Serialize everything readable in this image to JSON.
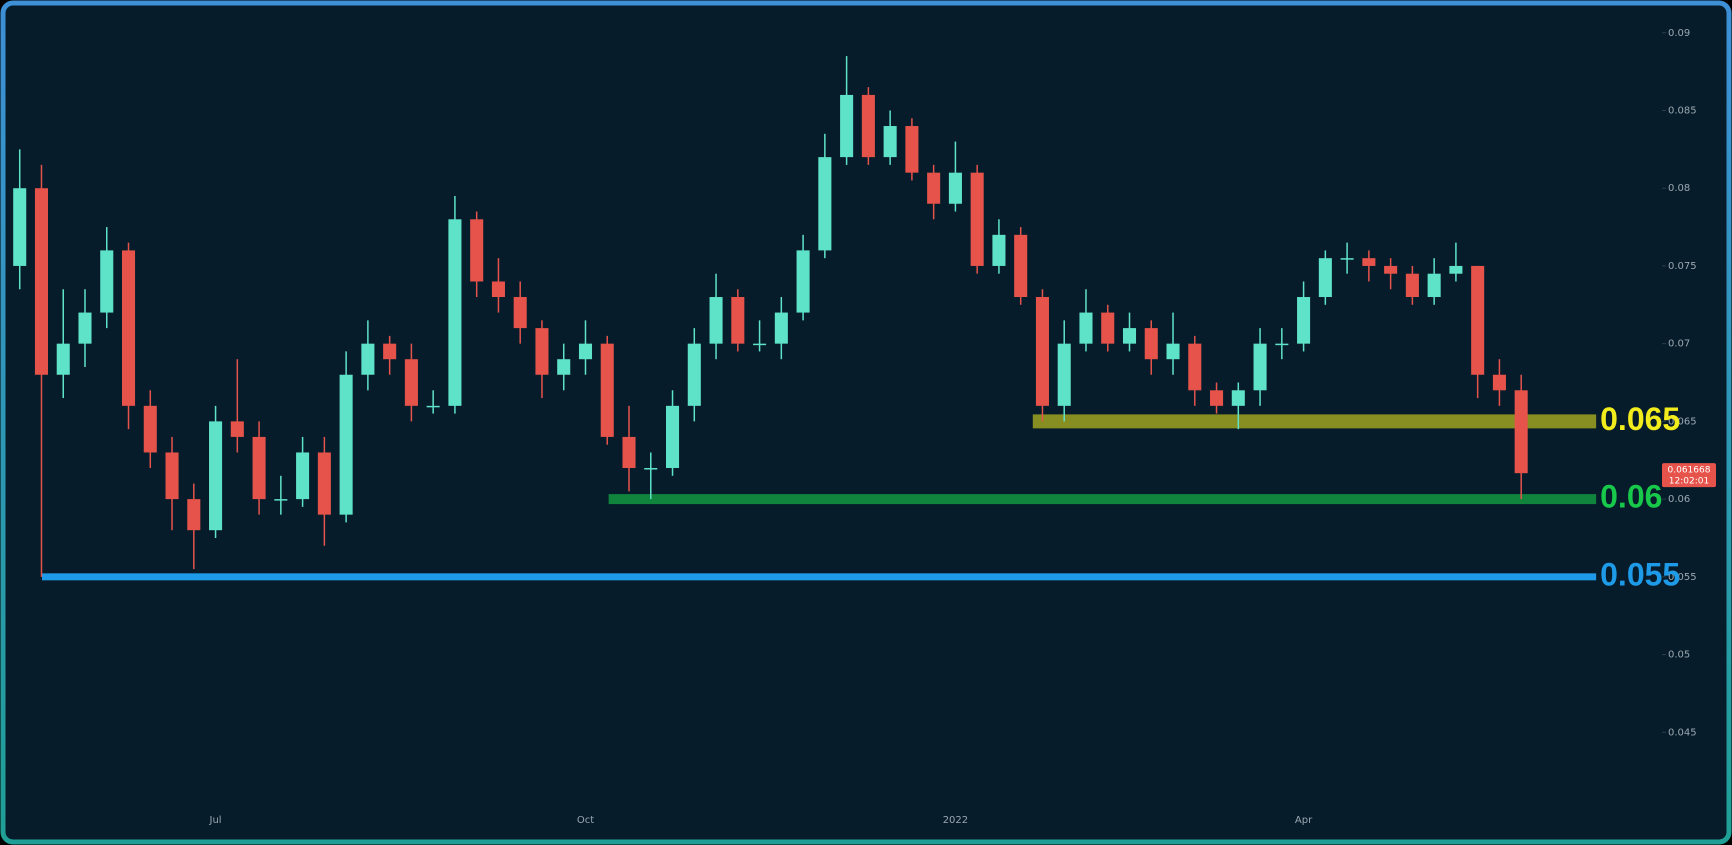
{
  "chart_data": {
    "type": "candlestick",
    "categories": [
      null,
      null,
      null,
      null,
      null,
      null,
      null,
      null,
      null,
      "Jul",
      null,
      null,
      null,
      null,
      null,
      null,
      null,
      null,
      null,
      null,
      null,
      null,
      null,
      null,
      null,
      null,
      "Oct",
      null,
      null,
      null,
      null,
      null,
      null,
      null,
      null,
      null,
      null,
      null,
      null,
      null,
      null,
      null,
      null,
      "2022",
      null,
      null,
      null,
      null,
      null,
      null,
      null,
      null,
      null,
      null,
      null,
      null,
      null,
      null,
      null,
      "Apr",
      null,
      null,
      null,
      null,
      null,
      null,
      null,
      null,
      null,
      null
    ],
    "open": [
      0.075,
      0.08,
      0.068,
      0.07,
      0.072,
      0.076,
      0.066,
      0.063,
      0.06,
      0.058,
      0.065,
      0.064,
      0.06,
      0.06,
      0.063,
      0.059,
      0.068,
      0.07,
      0.069,
      0.066,
      0.066,
      0.078,
      0.074,
      0.073,
      0.071,
      0.068,
      0.069,
      0.07,
      0.064,
      0.062,
      0.062,
      0.066,
      0.07,
      0.073,
      0.07,
      0.07,
      0.072,
      0.076,
      0.082,
      0.086,
      0.082,
      0.084,
      0.081,
      0.079,
      0.081,
      0.075,
      0.077,
      0.073,
      0.066,
      0.07,
      0.072,
      0.07,
      0.071,
      0.069,
      0.07,
      0.067,
      0.066,
      0.067,
      0.07,
      0.07,
      0.073,
      0.0755,
      0.0755,
      0.075,
      0.0745,
      0.073,
      0.0745,
      0.075,
      0.068,
      0.067
    ],
    "high": [
      0.0825,
      0.0815,
      0.0735,
      0.0735,
      0.0775,
      0.0765,
      0.067,
      0.064,
      0.061,
      0.066,
      0.069,
      0.065,
      0.0615,
      0.064,
      0.064,
      0.0695,
      0.0715,
      0.0705,
      0.07,
      0.067,
      0.0795,
      0.0785,
      0.0755,
      0.074,
      0.0715,
      0.07,
      0.0715,
      0.0705,
      0.066,
      0.063,
      0.067,
      0.071,
      0.0745,
      0.0735,
      0.0715,
      0.073,
      0.077,
      0.0835,
      0.0885,
      0.0865,
      0.085,
      0.0845,
      0.0815,
      0.083,
      0.0815,
      0.078,
      0.0775,
      0.0735,
      0.0715,
      0.0735,
      0.0725,
      0.072,
      0.0715,
      0.072,
      0.0705,
      0.0675,
      0.0675,
      0.071,
      0.071,
      0.074,
      0.076,
      0.0765,
      0.076,
      0.0755,
      0.075,
      0.0755,
      0.0765,
      0.075,
      0.069,
      0.068
    ],
    "low": [
      0.0735,
      0.055,
      0.0665,
      0.0685,
      0.071,
      0.0645,
      0.062,
      0.058,
      0.0555,
      0.0575,
      0.063,
      0.059,
      0.059,
      0.0595,
      0.057,
      0.0585,
      0.067,
      0.068,
      0.065,
      0.0655,
      0.0655,
      0.073,
      0.072,
      0.07,
      0.0665,
      0.067,
      0.068,
      0.0635,
      0.0605,
      0.06,
      0.0615,
      0.065,
      0.069,
      0.0695,
      0.0695,
      0.069,
      0.0715,
      0.0755,
      0.0815,
      0.0815,
      0.0815,
      0.0805,
      0.078,
      0.0785,
      0.0745,
      0.0745,
      0.0725,
      0.065,
      0.065,
      0.0695,
      0.0695,
      0.0695,
      0.068,
      0.068,
      0.066,
      0.0655,
      0.0645,
      0.066,
      0.069,
      0.0695,
      0.0725,
      0.0745,
      0.074,
      0.0735,
      0.0725,
      0.0725,
      0.074,
      0.0665,
      0.066,
      0.06
    ],
    "close": [
      0.08,
      0.068,
      0.07,
      0.072,
      0.076,
      0.066,
      0.063,
      0.06,
      0.058,
      0.065,
      0.064,
      0.06,
      0.06,
      0.063,
      0.059,
      0.068,
      0.07,
      0.069,
      0.066,
      0.066,
      0.078,
      0.074,
      0.073,
      0.071,
      0.068,
      0.069,
      0.07,
      0.064,
      0.062,
      0.062,
      0.066,
      0.07,
      0.073,
      0.07,
      0.07,
      0.072,
      0.076,
      0.082,
      0.086,
      0.082,
      0.084,
      0.081,
      0.079,
      0.081,
      0.075,
      0.077,
      0.073,
      0.066,
      0.07,
      0.072,
      0.07,
      0.071,
      0.069,
      0.07,
      0.067,
      0.066,
      0.067,
      0.07,
      0.07,
      0.073,
      0.0755,
      0.0755,
      0.075,
      0.0745,
      0.073,
      0.0745,
      0.075,
      0.068,
      0.067,
      0.061668
    ],
    "up_color": "#5fe3c8",
    "down_color": "#e5534b",
    "ylim": [
      0.04,
      0.0914
    ],
    "yticks": [
      0.045,
      0.05,
      0.055,
      0.06,
      0.065,
      0.07,
      0.075,
      0.08,
      0.085,
      0.09
    ],
    "levels": [
      {
        "value": 0.065,
        "color": "#f2ec1c"
      },
      {
        "value": 0.06,
        "color": "#18c84a"
      },
      {
        "value": 0.055,
        "color": "#1e9be8"
      }
    ],
    "last_price": 0.061668,
    "countdown": "12:02:01"
  }
}
